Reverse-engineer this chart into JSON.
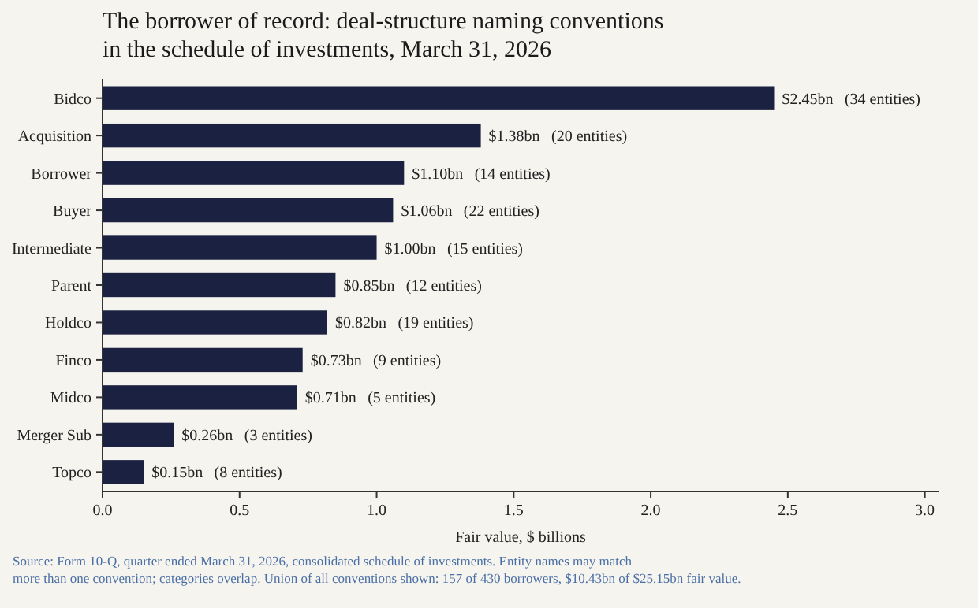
{
  "chart_data": {
    "type": "bar",
    "orientation": "horizontal",
    "title": "The borrower of record: deal-structure naming conventions\nin the schedule of investments, March 31, 2026",
    "categories": [
      "Bidco",
      "Acquisition",
      "Borrower",
      "Buyer",
      "Intermediate",
      "Parent",
      "Holdco",
      "Finco",
      "Midco",
      "Merger Sub",
      "Topco"
    ],
    "values": [
      2.45,
      1.38,
      1.1,
      1.06,
      1.0,
      0.85,
      0.82,
      0.73,
      0.71,
      0.26,
      0.15
    ],
    "value_labels": [
      "$2.45bn",
      "$1.38bn",
      "$1.10bn",
      "$1.06bn",
      "$1.00bn",
      "$0.85bn",
      "$0.82bn",
      "$0.73bn",
      "$0.71bn",
      "$0.26bn",
      "$0.15bn"
    ],
    "color": "#1b2140",
    "xlim": [
      0,
      3.05
    ],
    "xticks": [
      {
        "value": 0,
        "label": "0.0"
      },
      {
        "value": 0.5,
        "label": "0.5"
      },
      {
        "value": 1,
        "label": "1.0"
      },
      {
        "value": 1.5,
        "label": "1.5"
      },
      {
        "value": 2,
        "label": "2.0"
      },
      {
        "value": 2.5,
        "label": "2.5"
      },
      {
        "value": 3,
        "label": "3.0"
      }
    ],
    "xlabel": "Fair value, $ billions",
    "grid": false,
    "annotations": [
      "(34 entities)",
      "(20 entities)",
      "(14 entities)",
      "(22 entities)",
      "(15 entities)",
      "(12 entities)",
      "(19 entities)",
      "(9 entities)",
      "(5 entities)",
      "(3 entities)",
      "(8 entities)",
      "Source: Form 10-Q, quarter ended March 31, 2026, consolidated schedule of investments. Entity names may match\nmore than one convention; categories overlap. Union of all conventions shown: 157 of 430 borrowers, $10.43bn of $25.15bn fair value."
    ]
  }
}
